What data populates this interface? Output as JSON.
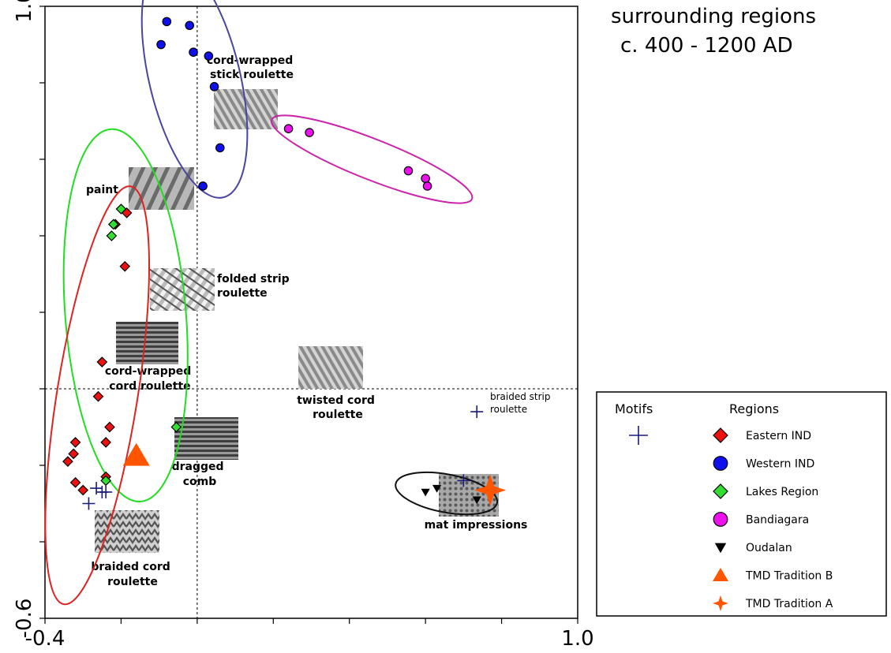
{
  "chart_data": {
    "type": "scatter",
    "title_lines": [
      "surrounding regions",
      "c. 400 - 1200 AD"
    ],
    "xlim": [
      -0.4,
      1.0
    ],
    "ylim": [
      -0.6,
      1.0
    ],
    "x_tick_labels": [
      {
        "value": -0.4,
        "label": "-0.4"
      },
      {
        "value": 1.0,
        "label": "1.0"
      }
    ],
    "y_tick_labels": [
      {
        "value": -0.6,
        "label": "-0.6"
      },
      {
        "value": 1.0,
        "label": "1.0"
      }
    ],
    "x_minor_ticks": [
      -0.2,
      0.0,
      0.2,
      0.4,
      0.6,
      0.8
    ],
    "y_minor_ticks": [
      -0.4,
      -0.2,
      0.0,
      0.2,
      0.4,
      0.6,
      0.8
    ],
    "reference_lines": {
      "x": 0.0,
      "y": 0.0
    },
    "series": [
      {
        "name": "Eastern IND",
        "marker": "diamond",
        "color": "#ee1111",
        "points": [
          [
            -0.185,
            0.46
          ],
          [
            -0.215,
            0.43
          ],
          [
            -0.19,
            0.32
          ],
          [
            -0.25,
            0.07
          ],
          [
            -0.26,
            -0.02
          ],
          [
            -0.23,
            -0.1
          ],
          [
            -0.24,
            -0.14
          ],
          [
            -0.32,
            -0.14
          ],
          [
            -0.325,
            -0.17
          ],
          [
            -0.34,
            -0.19
          ],
          [
            -0.32,
            -0.245
          ],
          [
            -0.24,
            -0.23
          ],
          [
            -0.3,
            -0.265
          ]
        ]
      },
      {
        "name": "Western IND",
        "marker": "circle",
        "color": "#1010ee",
        "points": [
          [
            -0.08,
            0.96
          ],
          [
            -0.02,
            0.95
          ],
          [
            -0.095,
            0.9
          ],
          [
            -0.01,
            0.88
          ],
          [
            0.03,
            0.87
          ],
          [
            0.045,
            0.79
          ],
          [
            0.06,
            0.63
          ],
          [
            0.015,
            0.53
          ]
        ]
      },
      {
        "name": "Lakes Region",
        "marker": "diamond",
        "color": "#33dd33",
        "points": [
          [
            -0.2,
            0.47
          ],
          [
            -0.22,
            0.43
          ],
          [
            -0.225,
            0.4
          ],
          [
            -0.055,
            -0.1
          ],
          [
            -0.24,
            -0.24
          ]
        ]
      },
      {
        "name": "Bandiagara",
        "marker": "circle",
        "color": "#ee11ee",
        "points": [
          [
            0.24,
            0.68
          ],
          [
            0.295,
            0.67
          ],
          [
            0.555,
            0.57
          ],
          [
            0.6,
            0.55
          ],
          [
            0.605,
            0.53
          ]
        ]
      },
      {
        "name": "Oudalan",
        "marker": "triangle-down",
        "color": "#000000",
        "points": [
          [
            0.63,
            -0.26
          ],
          [
            0.6,
            -0.27
          ],
          [
            0.735,
            -0.29
          ]
        ]
      },
      {
        "name": "TMD Tradition B",
        "marker": "triangle-up",
        "color": "#ff5500",
        "points": [
          [
            -0.16,
            -0.175
          ]
        ]
      },
      {
        "name": "TMD Tradition A",
        "marker": "star4",
        "color": "#ff5500",
        "points": [
          [
            0.77,
            -0.265
          ]
        ]
      },
      {
        "name": "Motifs",
        "marker": "plus",
        "color": "#1a1a7a",
        "points": [
          [
            0.735,
            -0.06
          ],
          [
            0.7,
            -0.24
          ],
          [
            -0.24,
            -0.27
          ],
          [
            -0.265,
            -0.26
          ],
          [
            -0.25,
            -0.27
          ],
          [
            -0.285,
            -0.3
          ]
        ]
      }
    ],
    "enclosures": [
      {
        "group": "Western IND",
        "color": "#4a45a0"
      },
      {
        "group": "Bandiagara",
        "color": "#cc22aa"
      },
      {
        "group": "Oudalan",
        "color": "#111111"
      },
      {
        "group": "Lakes Region",
        "color": "#22dd22"
      },
      {
        "group": "Eastern IND",
        "color": "#dd2222"
      }
    ],
    "annotations": [
      {
        "lines": [
          "cord-wrapped",
          "stick roulette"
        ],
        "near_group": "Western IND"
      },
      {
        "lines": [
          "paint"
        ]
      },
      {
        "lines": [
          "folded strip",
          "roulette"
        ]
      },
      {
        "lines": [
          "cord-wrapped",
          "cord roulette"
        ]
      },
      {
        "lines": [
          "twisted cord",
          "roulette"
        ]
      },
      {
        "lines": [
          "dragged",
          "comb"
        ]
      },
      {
        "lines": [
          "braided cord",
          "roulette"
        ]
      },
      {
        "lines": [
          "mat impressions"
        ]
      },
      {
        "lines": [
          "braided strip",
          "roulette"
        ],
        "style": "small"
      }
    ],
    "legend": {
      "placement": "right",
      "motifs_heading": "Motifs",
      "regions_heading": "Regions",
      "entries": [
        "Eastern IND",
        "Western IND",
        "Lakes Region",
        "Bandiagara",
        "Oudalan",
        "TMD Tradition B",
        "TMD Tradition A"
      ]
    }
  }
}
